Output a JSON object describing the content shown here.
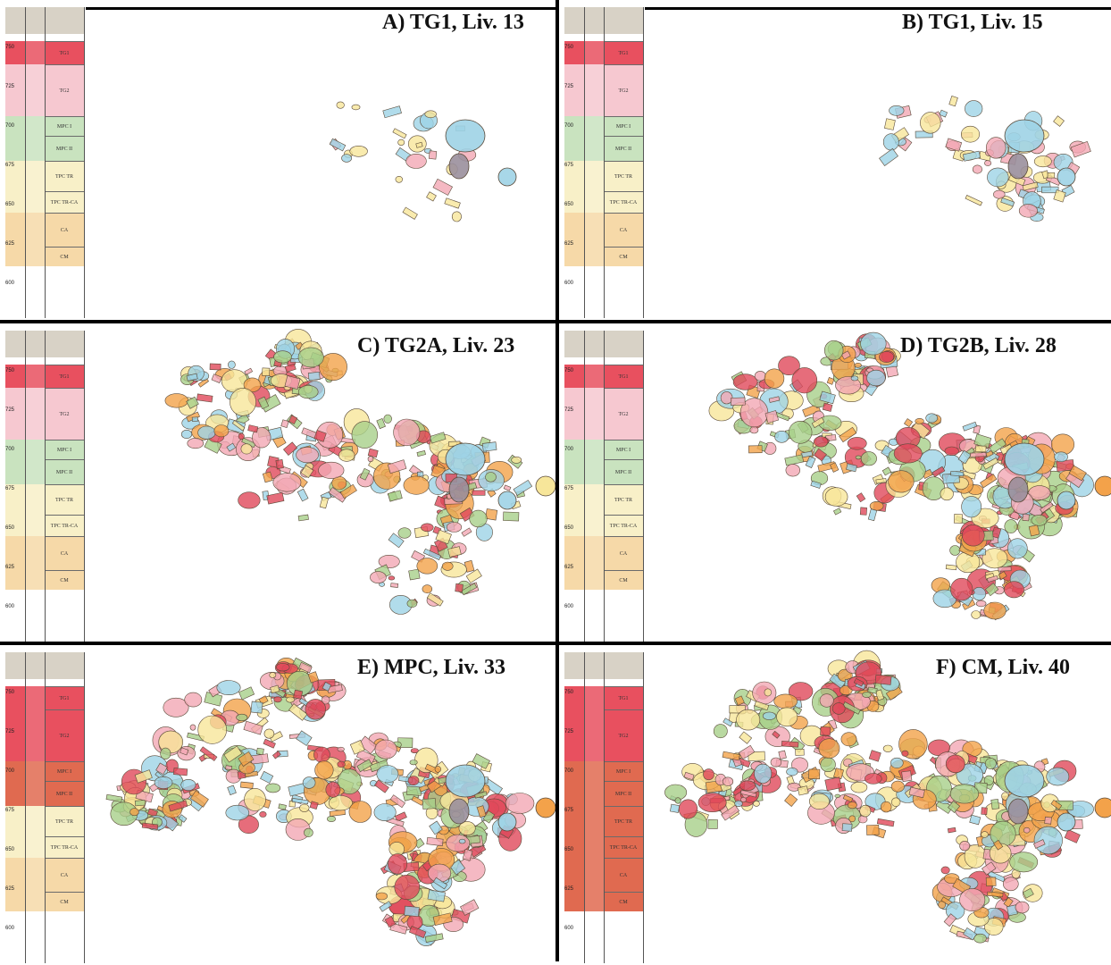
{
  "panels": [
    {
      "id": "A",
      "title": "A) TG1, Liv. 13",
      "level": 13,
      "phase": "TG1"
    },
    {
      "id": "B",
      "title": "B) TG1, Liv. 15",
      "level": 15,
      "phase": "TG1"
    },
    {
      "id": "C",
      "title": "C) TG2A, Liv. 23",
      "level": 23,
      "phase": "TG2A"
    },
    {
      "id": "D",
      "title": "D) TG2B, Liv. 28",
      "level": 28,
      "phase": "TG2B"
    },
    {
      "id": "E",
      "title": "E) MPC, Liv. 33",
      "level": 33,
      "phase": "MPC"
    },
    {
      "id": "F",
      "title": "F) CM, Liv. 40",
      "level": 40,
      "phase": "CM"
    }
  ],
  "strat_units": [
    "TG1",
    "TG2",
    "MPC I",
    "MPC II",
    "TPC TR",
    "TPC TR-CA",
    "CA",
    "CM"
  ],
  "depth_ticks": [
    "750",
    "725",
    "700",
    "675",
    "650",
    "625",
    "600"
  ],
  "colors": {
    "red": "#e0485a",
    "pink": "#f2a7b4",
    "blue": "#9ed3e6",
    "yellow": "#f7e69a",
    "green": "#a7cf8a",
    "orange": "#f3a24a",
    "grey": "#9a8f9c",
    "strat_tg": "#e8505f",
    "strat_tg_light": "#f6c8d0",
    "strat_mpc": "#c9e3bf",
    "strat_tpc": "#f8f0c8",
    "strat_ca": "#f6d9a8",
    "strat_active": "#e06a50"
  }
}
